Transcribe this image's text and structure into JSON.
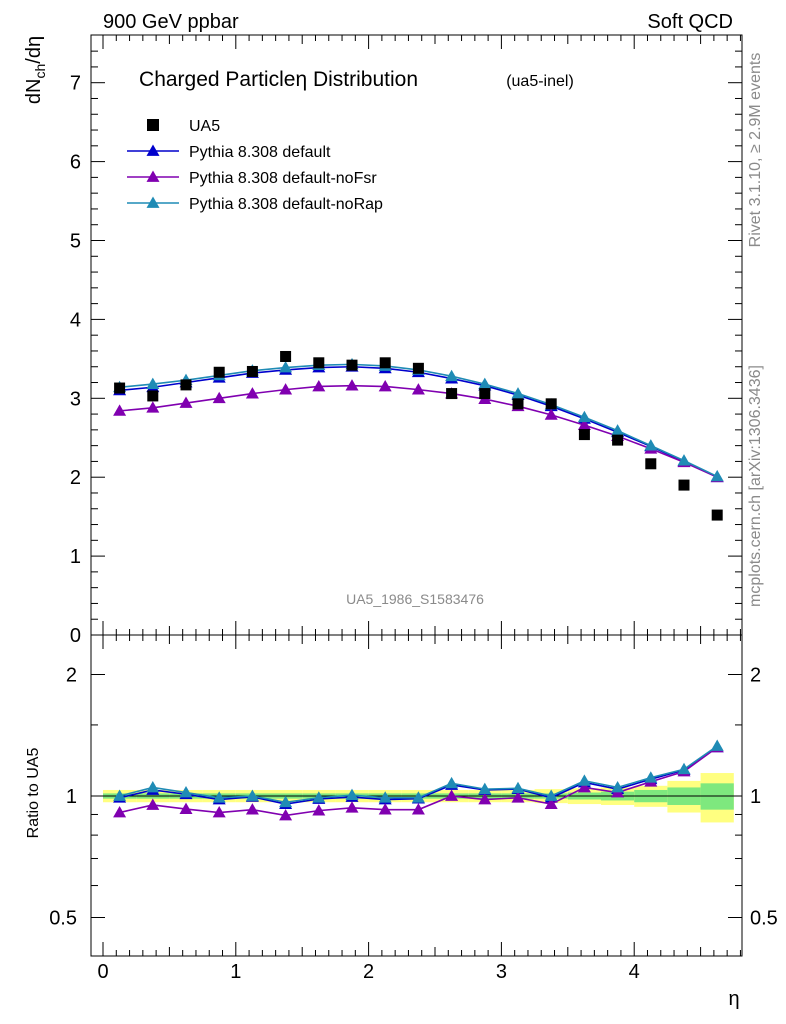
{
  "header": {
    "left": "900 GeV ppbar",
    "right": "Soft QCD"
  },
  "side_labels": {
    "rivet": "Rivet 3.1.10, ≥ 2.9M events",
    "mcplots": "mcplots.cern.ch [arXiv:1306.3436]"
  },
  "chart_data": {
    "type": "scatter",
    "title": "Charged Particleη Distribution",
    "subtitle": "(ua5-inel)",
    "watermark": "UA5_1986_S1583476",
    "xlabel": "η",
    "ylabel_main": "dN_ch/dη",
    "ylabel_ratio": "Ratio to UA5",
    "xlim": [
      -0.1,
      4.85
    ],
    "ylim_main": [
      0,
      7.6
    ],
    "ylim_ratio": [
      0.4,
      2.3
    ],
    "ratio_log_scale": true,
    "x_ticks": [
      "0",
      "1",
      "2",
      "3",
      "4"
    ],
    "y_ticks_main": [
      "0",
      "1",
      "2",
      "3",
      "4",
      "5",
      "6",
      "7"
    ],
    "y_ticks_ratio": [
      "0.5",
      "1",
      "2"
    ],
    "legend_position": "top-left",
    "x": [
      0.125,
      0.375,
      0.625,
      0.875,
      1.125,
      1.375,
      1.625,
      1.875,
      2.125,
      2.375,
      2.625,
      2.875,
      3.125,
      3.375,
      3.625,
      3.875,
      4.125,
      4.375,
      4.625
    ],
    "data": {
      "name": "UA5",
      "color": "#000000",
      "values": [
        3.13,
        3.03,
        3.17,
        3.33,
        3.34,
        3.53,
        3.45,
        3.42,
        3.45,
        3.38,
        3.06,
        3.06,
        2.93,
        2.93,
        2.54,
        2.47,
        2.17,
        1.9,
        1.52
      ]
    },
    "series": [
      {
        "name": "Pythia 8.308 default",
        "color": "#0000cc",
        "values": [
          3.1,
          3.14,
          3.2,
          3.26,
          3.32,
          3.36,
          3.39,
          3.4,
          3.38,
          3.33,
          3.25,
          3.16,
          3.04,
          2.9,
          2.74,
          2.57,
          2.39,
          2.2,
          2.0
        ],
        "ratio": [
          0.99,
          1.035,
          1.01,
          0.98,
          0.995,
          0.955,
          0.983,
          0.994,
          0.98,
          0.985,
          1.065,
          1.035,
          1.04,
          0.99,
          1.08,
          1.04,
          1.1,
          1.16,
          1.32
        ]
      },
      {
        "name": "Pythia 8.308 default-noFsr",
        "color": "#8000b0",
        "values": [
          2.84,
          2.88,
          2.94,
          3.0,
          3.06,
          3.11,
          3.15,
          3.16,
          3.15,
          3.11,
          3.06,
          2.99,
          2.9,
          2.79,
          2.66,
          2.52,
          2.36,
          2.19,
          2.0
        ],
        "ratio": [
          0.91,
          0.95,
          0.928,
          0.91,
          0.925,
          0.895,
          0.92,
          0.935,
          0.925,
          0.925,
          1.0,
          0.98,
          0.99,
          0.955,
          1.05,
          1.02,
          1.085,
          1.15,
          1.32
        ]
      },
      {
        "name": "Pythia 8.308 default-noRap",
        "color": "#1f8bb5",
        "values": [
          3.14,
          3.18,
          3.23,
          3.29,
          3.35,
          3.39,
          3.42,
          3.43,
          3.41,
          3.36,
          3.28,
          3.18,
          3.06,
          2.92,
          2.76,
          2.59,
          2.4,
          2.21,
          2.01
        ],
        "ratio": [
          1.0,
          1.05,
          1.02,
          0.99,
          1.0,
          0.965,
          0.99,
          1.005,
          0.99,
          0.99,
          1.075,
          1.04,
          1.045,
          1.0,
          1.09,
          1.05,
          1.11,
          1.165,
          1.33
        ]
      }
    ],
    "uncertainty_band": {
      "stat_color": "#7ee87e",
      "total_color": "#ffff80",
      "stat": [
        0.015,
        0.015,
        0.015,
        0.015,
        0.015,
        0.015,
        0.015,
        0.015,
        0.015,
        0.015,
        0.015,
        0.015,
        0.015,
        0.015,
        0.02,
        0.025,
        0.035,
        0.05,
        0.075
      ],
      "total": [
        0.035,
        0.035,
        0.035,
        0.035,
        0.035,
        0.035,
        0.035,
        0.035,
        0.035,
        0.035,
        0.035,
        0.035,
        0.035,
        0.04,
        0.045,
        0.05,
        0.06,
        0.09,
        0.14
      ]
    }
  }
}
